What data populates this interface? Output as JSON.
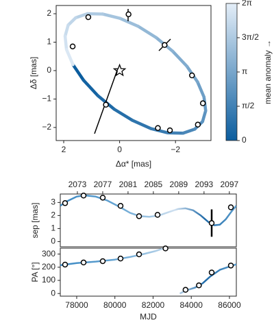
{
  "chart_data": [
    {
      "type": "orbit",
      "xlabel": "Δα* [mas]",
      "ylabel": "Δδ [mas]",
      "xlim": [
        2.27,
        -3.27
      ],
      "ylim": [
        -2.46,
        2.29
      ],
      "xticks": [
        2,
        0,
        {
          "value": -2,
          "label": "−2"
        }
      ],
      "yticks": [
        {
          "value": -2,
          "label": "−2"
        },
        {
          "value": -1,
          "label": "−1"
        },
        0,
        1,
        2
      ],
      "x": [
        1.67,
        1.29,
        0.78,
        0.19,
        -0.46,
        -1.12,
        -1.73,
        -2.27,
        -2.69,
        -2.97,
        -3.08,
        -3.02,
        -2.79,
        -2.41,
        -1.9,
        -1.31,
        -0.66,
        -0.01,
        0.61,
        1.15,
        1.57,
        1.84,
        1.95,
        1.9,
        1.67
      ],
      "values": [
        0.21,
        -0.34,
        -0.88,
        -1.36,
        -1.75,
        -2.04,
        -2.19,
        -2.2,
        -2.06,
        -1.79,
        -1.41,
        -0.93,
        -0.4,
        0.15,
        0.68,
        1.16,
        1.56,
        1.84,
        1.99,
        2.0,
        1.86,
        1.6,
        1.21,
        0.74,
        0.21
      ],
      "points": {
        "x": [
          1.12,
          -0.32,
          1.68,
          -1.61,
          -2.59,
          -2.98,
          -2.8,
          -1.8,
          -1.37,
          0.49
        ],
        "y": [
          1.88,
          1.98,
          0.85,
          0.9,
          -0.17,
          -1.15,
          -1.9,
          -2.1,
          -2.02,
          -1.2
        ]
      },
      "star": {
        "x": 0,
        "y": 0
      },
      "colorbar": {
        "label": "mean anomaly →",
        "lim": [
          0,
          6.2832
        ],
        "colors": [
          "#0b5d9e",
          "#e4eef8"
        ],
        "ticks": [
          0,
          {
            "value": 1.5708,
            "label": "π/2"
          },
          {
            "value": 3.1416,
            "label": "π"
          },
          {
            "value": 4.7124,
            "label": "3π/2"
          },
          {
            "value": 6.2832,
            "label": "2π"
          }
        ]
      }
    },
    {
      "type": "line",
      "ylabel": "sep [mas]",
      "xlim": [
        77140,
        86360
      ],
      "ylim": [
        -0.4,
        3.65
      ],
      "yticks": [
        0,
        1,
        2,
        3
      ],
      "top_axis": {
        "xlim": [
          2070.3,
          2098.1
        ],
        "xticks": [
          2073,
          2077,
          2081,
          2085,
          2089,
          2093,
          2097
        ]
      },
      "x": [
        77140,
        77500,
        78000,
        78400,
        79000,
        79600,
        80200,
        80800,
        81300,
        81800,
        82300,
        82800,
        83300,
        83700,
        84100,
        84500,
        84900,
        85200,
        85500,
        85800,
        86100,
        86360
      ],
      "values": [
        2.75,
        3.1,
        3.45,
        3.55,
        3.45,
        3.15,
        2.7,
        2.2,
        1.95,
        1.9,
        2.0,
        2.25,
        2.5,
        2.55,
        2.4,
        2.0,
        1.5,
        1.25,
        1.3,
        1.7,
        2.3,
        2.75
      ],
      "points": {
        "x": [
          77391,
          78360,
          79364,
          80297,
          81266,
          82235,
          85069,
          86074
        ],
        "y": [
          2.95,
          3.53,
          3.37,
          2.74,
          1.95,
          2.05,
          1.42,
          2.63
        ],
        "err": [
          0.05,
          0.05,
          0.05,
          0.05,
          0.05,
          0.05,
          1.05,
          0.05
        ]
      }
    },
    {
      "type": "line",
      "ylabel": "PA [°]",
      "xlabel": "MJD",
      "xlim": [
        77140,
        86360
      ],
      "ylim": [
        -20,
        345
      ],
      "yticks": [
        0,
        100,
        200,
        300
      ],
      "xticks": [
        78000,
        80000,
        82000,
        84000,
        86000
      ],
      "x": [
        77140,
        78000,
        79000,
        80000,
        80800,
        81500,
        82100,
        82900,
        83150,
        83400,
        83700,
        84200,
        84600,
        85000,
        85500,
        86000,
        86360
      ],
      "values": [
        215,
        232,
        243,
        258,
        278,
        300,
        322,
        360,
        null,
        0,
        22,
        45,
        78,
        130,
        180,
        205,
        222
      ],
      "points": {
        "x": [
          77391,
          78360,
          79364,
          80297,
          81266,
          82650,
          83700,
          84400,
          85069,
          86074
        ],
        "y": [
          220,
          236,
          246,
          266,
          298,
          343,
          28,
          62,
          160,
          213
        ]
      }
    }
  ]
}
